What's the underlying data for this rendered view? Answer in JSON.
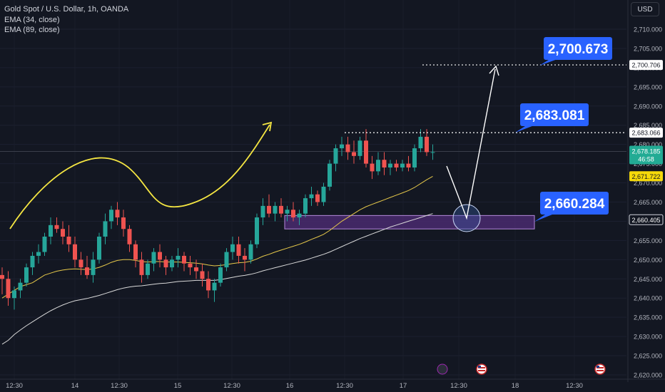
{
  "legend": {
    "symbol": "Gold Spot / U.S. Dollar, 1h, OANDA",
    "ema1": "EMA (34, close)",
    "ema2": "EMA (89, close)"
  },
  "currency_button": "USD",
  "y_axis": {
    "range": [
      2620,
      2712
    ],
    "ticks": [
      "2,710.000",
      "2,705.000",
      "2,700.000",
      "2,695.000",
      "2,690.000",
      "2,685.000",
      "2,680.000",
      "2,675.000",
      "2,670.000",
      "2,665.000",
      "2,660.000",
      "2,655.000",
      "2,650.000",
      "2,645.000",
      "2,640.000",
      "2,635.000",
      "2,630.000",
      "2,625.000",
      "2,620.000"
    ],
    "tick_values": [
      2710,
      2705,
      2700,
      2695,
      2690,
      2685,
      2680,
      2675,
      2670,
      2665,
      2660,
      2655,
      2650,
      2645,
      2640,
      2635,
      2630,
      2625,
      2620
    ]
  },
  "x_axis": {
    "labels": [
      "12:30",
      "14",
      "12:30",
      "15",
      "12:30",
      "16",
      "12:30",
      "17",
      "12:30",
      "18",
      "12:30"
    ]
  },
  "price_tags": {
    "target": {
      "value": 2700.706,
      "text": "2,700.706"
    },
    "high": {
      "value": 2683.066,
      "text": "2,683.066"
    },
    "current": {
      "value": 2678.185,
      "text": "2,678.185",
      "countdown": "46:58",
      "color": "#22ab94"
    },
    "ema34": {
      "value": 2671.722,
      "text": "2,671.722",
      "color": "#f5d90a"
    },
    "support": {
      "value": 2660.405,
      "text": "2,660.405"
    }
  },
  "callouts": [
    {
      "text": "2,700.673",
      "value": 2700.673
    },
    {
      "text": "2,683.081",
      "value": 2683.081
    },
    {
      "text": "2,660.284",
      "value": 2660.284
    }
  ],
  "support_zone": {
    "top": 2661.5,
    "bottom": 2658.0,
    "color": "#7b3fa0"
  },
  "colors": {
    "up": "#26a69a",
    "down": "#ef5350",
    "ema34": "#e6c84a",
    "ema89": "#d9d9d9",
    "callout": "#2962ff",
    "arrow_curve": "#f5e642"
  },
  "chart_data": {
    "type": "candlestick",
    "ylim": [
      2620,
      2712
    ],
    "candles": [
      [
        2646,
        2648,
        2641,
        2645
      ],
      [
        2645,
        2647,
        2638,
        2640
      ],
      [
        2640,
        2643,
        2637,
        2642
      ],
      [
        2642,
        2645,
        2640,
        2644
      ],
      [
        2644,
        2649,
        2643,
        2648
      ],
      [
        2648,
        2652,
        2646,
        2651
      ],
      [
        2651,
        2654,
        2649,
        2652
      ],
      [
        2652,
        2657,
        2651,
        2656
      ],
      [
        2656,
        2661,
        2654,
        2659
      ],
      [
        2659,
        2661,
        2657,
        2658
      ],
      [
        2658,
        2660,
        2654,
        2656
      ],
      [
        2656,
        2659,
        2652,
        2654
      ],
      [
        2654,
        2656,
        2648,
        2650
      ],
      [
        2650,
        2652,
        2646,
        2648
      ],
      [
        2648,
        2651,
        2645,
        2646
      ],
      [
        2646,
        2652,
        2644,
        2650
      ],
      [
        2650,
        2657,
        2649,
        2656
      ],
      [
        2656,
        2662,
        2654,
        2660
      ],
      [
        2660,
        2664,
        2658,
        2663
      ],
      [
        2663,
        2665,
        2659,
        2661
      ],
      [
        2661,
        2663,
        2656,
        2658
      ],
      [
        2658,
        2659,
        2652,
        2654
      ],
      [
        2654,
        2655,
        2648,
        2650
      ],
      [
        2650,
        2652,
        2644,
        2646
      ],
      [
        2646,
        2650,
        2645,
        2649
      ],
      [
        2649,
        2653,
        2647,
        2652
      ],
      [
        2652,
        2654,
        2648,
        2650
      ],
      [
        2650,
        2651,
        2646,
        2648
      ],
      [
        2648,
        2651,
        2647,
        2650
      ],
      [
        2650,
        2653,
        2648,
        2651
      ],
      [
        2651,
        2652,
        2647,
        2649
      ],
      [
        2649,
        2651,
        2646,
        2648
      ],
      [
        2648,
        2650,
        2645,
        2647
      ],
      [
        2647,
        2649,
        2643,
        2645
      ],
      [
        2645,
        2647,
        2640,
        2642
      ],
      [
        2642,
        2645,
        2639,
        2644
      ],
      [
        2644,
        2649,
        2643,
        2648
      ],
      [
        2648,
        2653,
        2647,
        2652
      ],
      [
        2652,
        2656,
        2650,
        2654
      ],
      [
        2654,
        2656,
        2649,
        2651
      ],
      [
        2651,
        2653,
        2647,
        2650
      ],
      [
        2650,
        2655,
        2649,
        2654
      ],
      [
        2654,
        2662,
        2653,
        2661
      ],
      [
        2661,
        2666,
        2659,
        2664
      ],
      [
        2664,
        2667,
        2661,
        2662
      ],
      [
        2662,
        2665,
        2660,
        2664
      ],
      [
        2664,
        2666,
        2661,
        2662
      ],
      [
        2662,
        2664,
        2660,
        2663
      ],
      [
        2663,
        2665,
        2660,
        2661
      ],
      [
        2661,
        2663,
        2659,
        2662
      ],
      [
        2662,
        2667,
        2661,
        2666
      ],
      [
        2666,
        2669,
        2664,
        2667
      ],
      [
        2667,
        2668,
        2664,
        2665
      ],
      [
        2665,
        2670,
        2664,
        2669
      ],
      [
        2669,
        2676,
        2668,
        2675
      ],
      [
        2675,
        2680,
        2673,
        2679
      ],
      [
        2679,
        2682,
        2677,
        2680
      ],
      [
        2680,
        2682,
        2676,
        2678
      ],
      [
        2678,
        2681,
        2675,
        2677
      ],
      [
        2677,
        2682,
        2676,
        2681
      ],
      [
        2681,
        2684,
        2674,
        2675
      ],
      [
        2675,
        2677,
        2671,
        2673
      ],
      [
        2673,
        2678,
        2672,
        2676
      ],
      [
        2676,
        2678,
        2672,
        2674
      ],
      [
        2674,
        2676,
        2672,
        2675
      ],
      [
        2675,
        2676,
        2673,
        2674
      ],
      [
        2674,
        2676,
        2673,
        2675
      ],
      [
        2675,
        2677,
        2673,
        2674
      ],
      [
        2674,
        2680,
        2673,
        2679
      ],
      [
        2679,
        2684,
        2678,
        2682
      ],
      [
        2682,
        2684,
        2677,
        2678
      ],
      [
        2678,
        2680,
        2676,
        2678
      ]
    ],
    "ema34": [
      2640,
      2641,
      2642,
      2643,
      2643.5,
      2644,
      2645,
      2646,
      2646.5,
      2647,
      2647.3,
      2647.5,
      2647.6,
      2647.5,
      2647.4,
      2647.6,
      2648,
      2648.6,
      2649.3,
      2649.8,
      2650,
      2650,
      2649.8,
      2649.5,
      2649.4,
      2649.5,
      2649.5,
      2649.4,
      2649.4,
      2649.4,
      2649.3,
      2649.2,
      2649.1,
      2648.9,
      2648.6,
      2648.4,
      2648.5,
      2648.7,
      2649,
      2649.2,
      2649.3,
      2649.6,
      2650.2,
      2650.9,
      2651.4,
      2652,
      2652.5,
      2653,
      2653.5,
      2654,
      2654.6,
      2655.3,
      2655.9,
      2656.6,
      2657.6,
      2658.8,
      2660,
      2661,
      2662,
      2663,
      2663.8,
      2664.4,
      2665,
      2665.6,
      2666.2,
      2666.8,
      2667.4,
      2668,
      2668.8,
      2669.8,
      2670.8,
      2671.7
    ],
    "ema89": [
      2628,
      2629,
      2630.5,
      2631.7,
      2632.8,
      2633.8,
      2634.8,
      2635.8,
      2636.7,
      2637.5,
      2638.2,
      2638.8,
      2639.3,
      2639.6,
      2639.9,
      2640.3,
      2640.7,
      2641.2,
      2641.7,
      2642.2,
      2642.6,
      2642.9,
      2643.1,
      2643.2,
      2643.4,
      2643.6,
      2643.8,
      2643.9,
      2644.1,
      2644.3,
      2644.4,
      2644.5,
      2644.6,
      2644.6,
      2644.6,
      2644.6,
      2644.8,
      2645.1,
      2645.4,
      2645.7,
      2645.9,
      2646.2,
      2646.6,
      2647.1,
      2647.5,
      2647.9,
      2648.3,
      2648.7,
      2649.1,
      2649.5,
      2649.9,
      2650.4,
      2650.9,
      2651.4,
      2652,
      2652.7,
      2653.4,
      2654.1,
      2654.8,
      2655.5,
      2656.1,
      2656.7,
      2657.3,
      2657.9,
      2658.5,
      2659,
      2659.5,
      2660,
      2660.5,
      2661,
      2661.5,
      2662
    ]
  }
}
